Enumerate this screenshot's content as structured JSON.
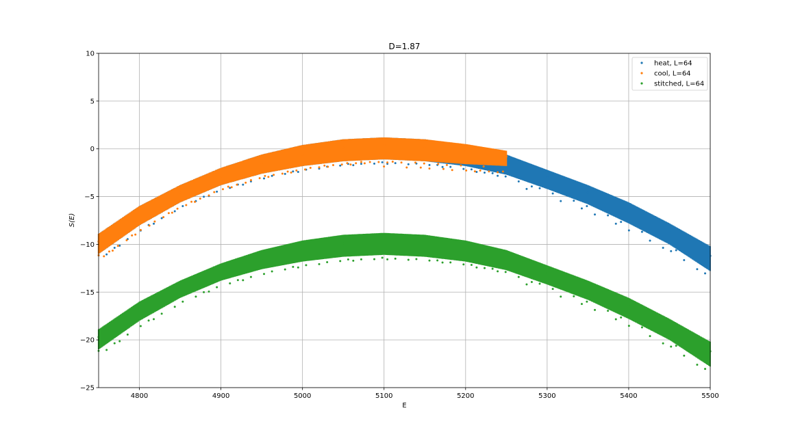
{
  "chart_data": {
    "type": "scatter",
    "title": "D=1.87",
    "xlabel": "E",
    "ylabel": "S(E)",
    "xlim": [
      4750,
      5500
    ],
    "ylim": [
      -25,
      10
    ],
    "x_ticks": [
      4800,
      4900,
      5000,
      5100,
      5200,
      5300,
      5400,
      5500
    ],
    "y_ticks": [
      10,
      5,
      0,
      -5,
      -10,
      -15,
      -20,
      -25
    ],
    "grid": true,
    "legend_position": "top-right",
    "series": [
      {
        "name": "heat, L=64",
        "color": "#1f77b4",
        "points": [
          [
            4750,
            -9.7
          ],
          [
            4800,
            -6.8
          ],
          [
            4850,
            -4.6
          ],
          [
            4900,
            -2.9
          ],
          [
            4950,
            -1.5
          ],
          [
            5000,
            -0.6
          ],
          [
            5050,
            0.1
          ],
          [
            5100,
            0.4
          ],
          [
            5150,
            0.2
          ],
          [
            5200,
            -0.4
          ],
          [
            5250,
            -1.4
          ],
          [
            5300,
            -3.0
          ],
          [
            5350,
            -4.6
          ],
          [
            5400,
            -6.4
          ],
          [
            5450,
            -8.6
          ],
          [
            5500,
            -11.2
          ]
        ],
        "upper": [
          [
            4750,
            -8.9
          ],
          [
            4800,
            -6.0
          ],
          [
            4850,
            -3.8
          ],
          [
            4900,
            -2.0
          ],
          [
            4950,
            -0.6
          ],
          [
            5000,
            0.4
          ],
          [
            5050,
            1.0
          ],
          [
            5100,
            1.2
          ],
          [
            5150,
            1.0
          ],
          [
            5200,
            0.4
          ],
          [
            5250,
            -0.6
          ],
          [
            5300,
            -2.2
          ],
          [
            5350,
            -3.8
          ],
          [
            5400,
            -5.6
          ],
          [
            5450,
            -7.8
          ],
          [
            5500,
            -10.2
          ]
        ],
        "lower": [
          [
            4750,
            -11.0
          ],
          [
            4800,
            -8.0
          ],
          [
            4850,
            -5.6
          ],
          [
            4900,
            -3.8
          ],
          [
            4950,
            -2.6
          ],
          [
            5000,
            -1.8
          ],
          [
            5050,
            -1.3
          ],
          [
            5100,
            -1.1
          ],
          [
            5150,
            -1.3
          ],
          [
            5200,
            -1.8
          ],
          [
            5250,
            -2.7
          ],
          [
            5300,
            -4.2
          ],
          [
            5350,
            -5.8
          ],
          [
            5400,
            -7.8
          ],
          [
            5450,
            -10.0
          ],
          [
            5500,
            -12.8
          ]
        ]
      },
      {
        "name": "cool, L=64",
        "color": "#ff7f0e",
        "points": [
          [
            4750,
            -9.7
          ],
          [
            4800,
            -6.8
          ],
          [
            4850,
            -4.6
          ],
          [
            4900,
            -2.9
          ],
          [
            4950,
            -1.5
          ],
          [
            5000,
            -0.6
          ],
          [
            5050,
            0.1
          ],
          [
            5100,
            0.4
          ],
          [
            5150,
            0.2
          ],
          [
            5200,
            -0.3
          ],
          [
            5250,
            -0.8
          ]
        ],
        "upper": [
          [
            4750,
            -8.9
          ],
          [
            4800,
            -6.0
          ],
          [
            4850,
            -3.8
          ],
          [
            4900,
            -2.0
          ],
          [
            4950,
            -0.6
          ],
          [
            5000,
            0.4
          ],
          [
            5050,
            1.0
          ],
          [
            5100,
            1.2
          ],
          [
            5150,
            1.0
          ],
          [
            5200,
            0.5
          ],
          [
            5250,
            -0.2
          ]
        ],
        "lower": [
          [
            4750,
            -11.0
          ],
          [
            4800,
            -8.0
          ],
          [
            4850,
            -5.6
          ],
          [
            4900,
            -3.8
          ],
          [
            4950,
            -2.6
          ],
          [
            5000,
            -1.8
          ],
          [
            5050,
            -1.3
          ],
          [
            5100,
            -1.1
          ],
          [
            5150,
            -1.3
          ],
          [
            5200,
            -1.6
          ],
          [
            5250,
            -1.8
          ]
        ]
      },
      {
        "name": "stitched, L=64",
        "color": "#2ca02c",
        "points": [
          [
            4750,
            -19.7
          ],
          [
            4800,
            -16.8
          ],
          [
            4850,
            -14.6
          ],
          [
            4900,
            -12.9
          ],
          [
            4950,
            -11.5
          ],
          [
            5000,
            -10.6
          ],
          [
            5050,
            -9.9
          ],
          [
            5100,
            -9.6
          ],
          [
            5150,
            -9.8
          ],
          [
            5200,
            -10.4
          ],
          [
            5250,
            -11.4
          ],
          [
            5300,
            -13.0
          ],
          [
            5350,
            -14.6
          ],
          [
            5400,
            -16.4
          ],
          [
            5450,
            -18.6
          ],
          [
            5500,
            -21.2
          ]
        ],
        "upper": [
          [
            4750,
            -18.9
          ],
          [
            4800,
            -16.0
          ],
          [
            4850,
            -13.8
          ],
          [
            4900,
            -12.0
          ],
          [
            4950,
            -10.6
          ],
          [
            5000,
            -9.6
          ],
          [
            5050,
            -9.0
          ],
          [
            5100,
            -8.8
          ],
          [
            5150,
            -9.0
          ],
          [
            5200,
            -9.6
          ],
          [
            5250,
            -10.6
          ],
          [
            5300,
            -12.2
          ],
          [
            5350,
            -13.8
          ],
          [
            5400,
            -15.6
          ],
          [
            5450,
            -17.8
          ],
          [
            5500,
            -20.2
          ]
        ],
        "lower": [
          [
            4750,
            -21.0
          ],
          [
            4800,
            -18.0
          ],
          [
            4850,
            -15.6
          ],
          [
            4900,
            -13.8
          ],
          [
            4950,
            -12.6
          ],
          [
            5000,
            -11.8
          ],
          [
            5050,
            -11.3
          ],
          [
            5100,
            -11.1
          ],
          [
            5150,
            -11.3
          ],
          [
            5200,
            -11.8
          ],
          [
            5250,
            -12.7
          ],
          [
            5300,
            -14.2
          ],
          [
            5350,
            -15.8
          ],
          [
            5400,
            -17.8
          ],
          [
            5450,
            -20.0
          ],
          [
            5500,
            -22.8
          ]
        ]
      }
    ]
  }
}
